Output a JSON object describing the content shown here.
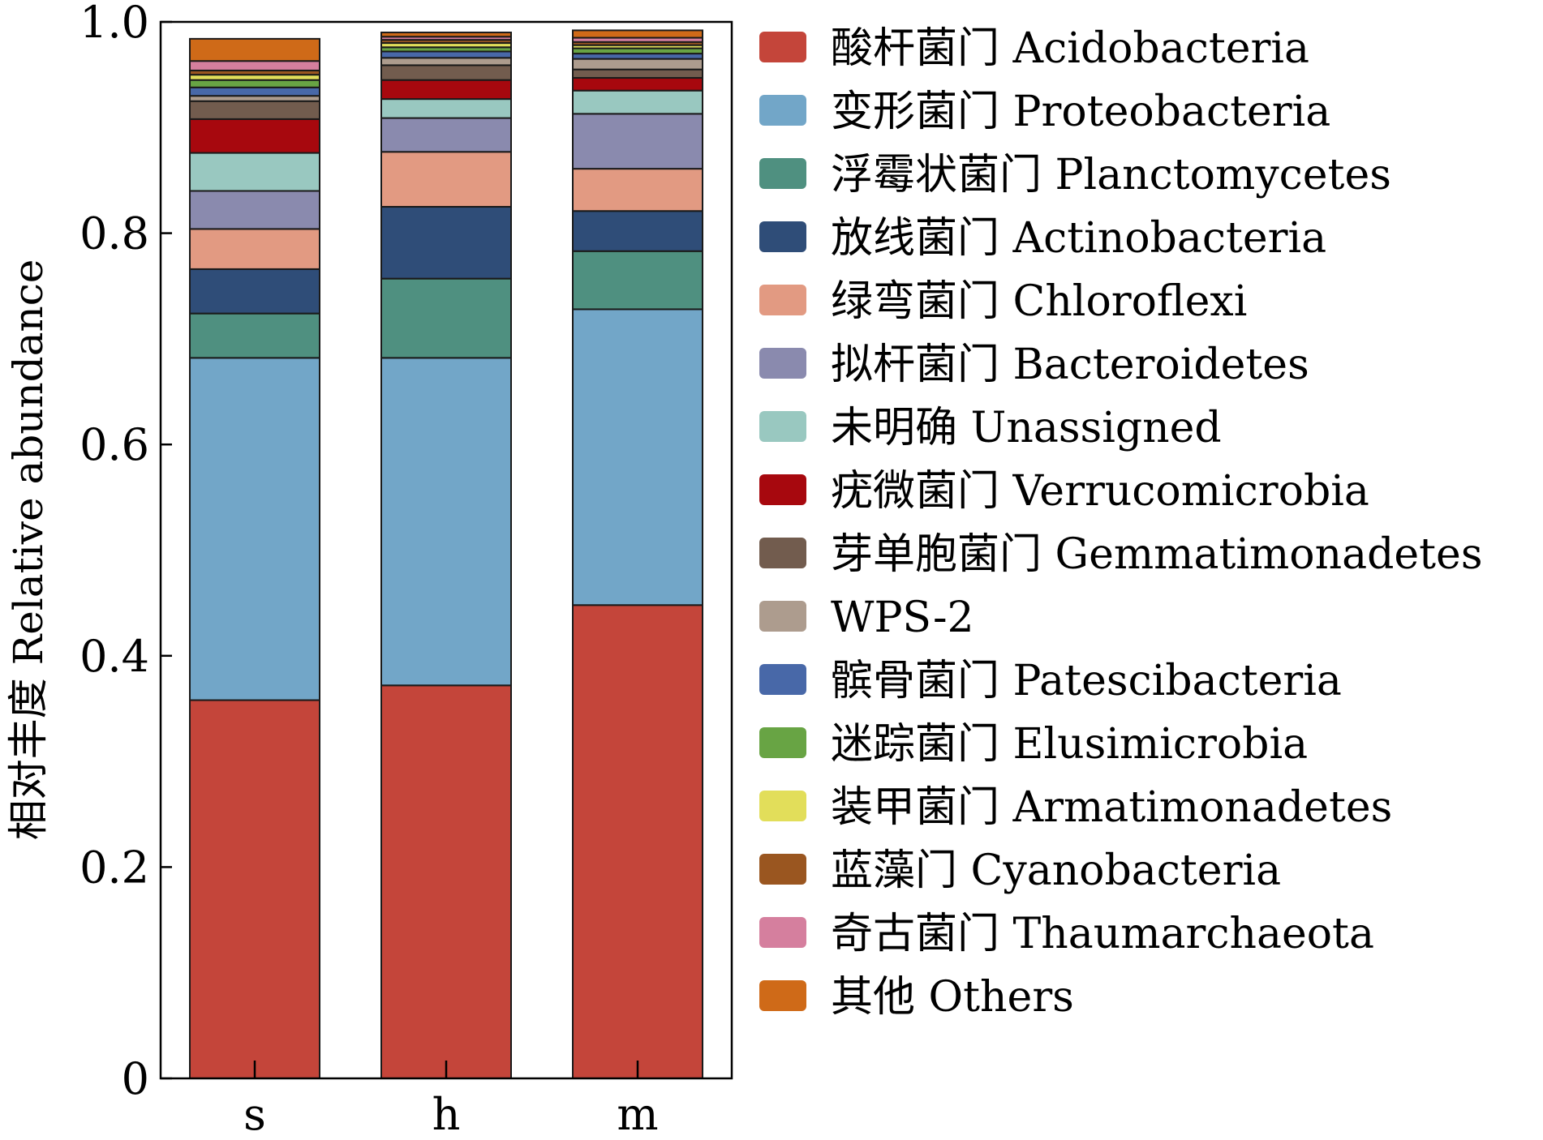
{
  "chart_data": {
    "type": "bar",
    "stacked": true,
    "categories": [
      "s",
      "h",
      "m"
    ],
    "ylabel": "相对丰度 Relative abundance",
    "xlabel": "",
    "ylim": [
      0,
      1.0
    ],
    "yticks": [
      0,
      0.2,
      0.4,
      0.6,
      0.8,
      1.0
    ],
    "ytick_labels": [
      "0",
      "0.2",
      "0.4",
      "0.6",
      "0.8",
      "1.0"
    ],
    "legend_position": "right",
    "grid": false,
    "series": [
      {
        "name": "酸杆菌门 Acidobacteria",
        "color": "#C4453A",
        "values": [
          0.358,
          0.372,
          0.448
        ]
      },
      {
        "name": "变形菌门 Proteobacteria",
        "color": "#72A6C8",
        "values": [
          0.324,
          0.31,
          0.28
        ]
      },
      {
        "name": "浮霉状菌门 Planctomycetes",
        "color": "#4F9080",
        "values": [
          0.042,
          0.075,
          0.055
        ]
      },
      {
        "name": "放线菌门 Actinobacteria",
        "color": "#2F4D78",
        "values": [
          0.042,
          0.068,
          0.038
        ]
      },
      {
        "name": "绿弯菌门 Chloroflexi",
        "color": "#E29A82",
        "values": [
          0.038,
          0.052,
          0.04
        ]
      },
      {
        "name": "拟杆菌门 Bacteroidetes",
        "color": "#8A8AAE",
        "values": [
          0.036,
          0.032,
          0.052
        ]
      },
      {
        "name": "未明确 Unassigned",
        "color": "#99C8C0",
        "values": [
          0.036,
          0.018,
          0.022
        ]
      },
      {
        "name": "疣微菌门 Verrucomicrobia",
        "color": "#A7080E",
        "values": [
          0.032,
          0.018,
          0.012
        ]
      },
      {
        "name": "芽单胞菌门 Gemmatimonadetes",
        "color": "#725C4E",
        "values": [
          0.017,
          0.014,
          0.008
        ]
      },
      {
        "name": "WPS-2",
        "color": "#AD9C8E",
        "values": [
          0.005,
          0.007,
          0.01
        ]
      },
      {
        "name": "髌骨菌门 Patescibacteria",
        "color": "#4868A8",
        "values": [
          0.008,
          0.006,
          0.005
        ]
      },
      {
        "name": "迷踪菌门 Elusimicrobia",
        "color": "#68A444",
        "values": [
          0.007,
          0.004,
          0.005
        ]
      },
      {
        "name": "装甲菌门 Armatimonadetes",
        "color": "#E2DE5A",
        "values": [
          0.005,
          0.004,
          0.003
        ]
      },
      {
        "name": "蓝藻门 Cyanobacteria",
        "color": "#9A5620",
        "values": [
          0.004,
          0.003,
          0.003
        ]
      },
      {
        "name": "奇古菌门 Thaumarchaeota",
        "color": "#D57F9E",
        "values": [
          0.009,
          0.003,
          0.004
        ]
      },
      {
        "name": "其他 Others",
        "color": "#CF6A18",
        "values": [
          0.021,
          0.004,
          0.007
        ]
      }
    ]
  }
}
